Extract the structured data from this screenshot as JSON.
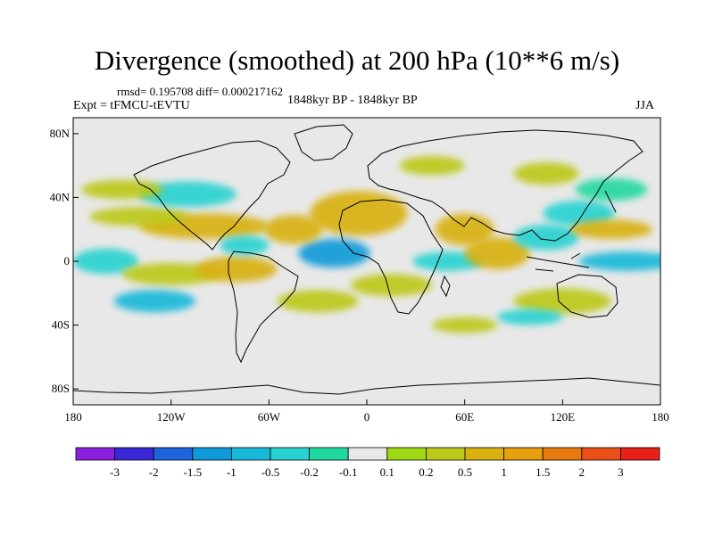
{
  "title": "Divergence (smoothed) at 200 hPa (10**6 m/s)",
  "stats": "rmsd= 0.195708 diff= 0.000217162",
  "experiment": "Expt = tFMCU-tEVTU",
  "period": "1848kyr BP - 1848kyr BP",
  "season": "JJA",
  "colors": {
    "map_background": "#e8e8e8",
    "coastline": "#000000",
    "frame": "#000000"
  },
  "chart_data": {
    "type": "heatmap",
    "projection": "cylindrical-equidistant",
    "lon_range": [
      -180,
      180
    ],
    "lat_range": [
      -90,
      90
    ],
    "x_ticks": [
      {
        "lon": -180,
        "label": "180"
      },
      {
        "lon": -120,
        "label": "120W"
      },
      {
        "lon": -60,
        "label": "60W"
      },
      {
        "lon": 0,
        "label": "0"
      },
      {
        "lon": 60,
        "label": "60E"
      },
      {
        "lon": 120,
        "label": "120E"
      },
      {
        "lon": 180,
        "label": "180"
      }
    ],
    "y_ticks": [
      {
        "lat": 80,
        "label": "80N"
      },
      {
        "lat": 40,
        "label": "40N"
      },
      {
        "lat": 0,
        "label": "0"
      },
      {
        "lat": -40,
        "label": "40S"
      },
      {
        "lat": -80,
        "label": "80S"
      }
    ],
    "colorbar": {
      "colors": [
        "#8b1fe0",
        "#3a28d8",
        "#1e64dc",
        "#0e9ad8",
        "#18b8d8",
        "#28d2d0",
        "#20d8a0",
        "#e8e8e8",
        "#9ed812",
        "#bcc818",
        "#d8b010",
        "#e8a010",
        "#e87a10",
        "#e85018",
        "#e82018"
      ],
      "labels": [
        "-3",
        "-2",
        "-1.5",
        "-1",
        "-0.5",
        "-0.2",
        "-0.1",
        "0.1",
        "0.2",
        "0.5",
        "1",
        "1.5",
        "2",
        "3"
      ]
    },
    "features": [
      {
        "lon": -5,
        "lat": 30,
        "rx": 30,
        "ry": 14,
        "value": 0.9
      },
      {
        "lon": -20,
        "lat": 5,
        "rx": 22,
        "ry": 9,
        "value": -1.2
      },
      {
        "lon": -45,
        "lat": 20,
        "rx": 18,
        "ry": 9,
        "value": 0.5
      },
      {
        "lon": -100,
        "lat": 22,
        "rx": 40,
        "ry": 8,
        "value": 0.5
      },
      {
        "lon": -140,
        "lat": 28,
        "rx": 30,
        "ry": 6,
        "value": 0.3
      },
      {
        "lon": -110,
        "lat": 42,
        "rx": 30,
        "ry": 8,
        "value": -0.3
      },
      {
        "lon": -150,
        "lat": 45,
        "rx": 25,
        "ry": 6,
        "value": 0.3
      },
      {
        "lon": -160,
        "lat": 0,
        "rx": 20,
        "ry": 8,
        "value": -0.4
      },
      {
        "lon": -120,
        "lat": -8,
        "rx": 30,
        "ry": 7,
        "value": 0.4
      },
      {
        "lon": -130,
        "lat": -25,
        "rx": 25,
        "ry": 7,
        "value": -0.8
      },
      {
        "lon": -80,
        "lat": -5,
        "rx": 25,
        "ry": 8,
        "value": 0.5
      },
      {
        "lon": -75,
        "lat": 10,
        "rx": 15,
        "ry": 6,
        "value": -0.3
      },
      {
        "lon": -30,
        "lat": -25,
        "rx": 25,
        "ry": 7,
        "value": 0.4
      },
      {
        "lon": 15,
        "lat": -15,
        "rx": 25,
        "ry": 7,
        "value": 0.3
      },
      {
        "lon": 50,
        "lat": 0,
        "rx": 22,
        "ry": 6,
        "value": -0.5
      },
      {
        "lon": 60,
        "lat": 20,
        "rx": 18,
        "ry": 10,
        "value": 0.5
      },
      {
        "lon": 80,
        "lat": 5,
        "rx": 20,
        "ry": 10,
        "value": 0.5
      },
      {
        "lon": 110,
        "lat": 15,
        "rx": 20,
        "ry": 8,
        "value": -0.5
      },
      {
        "lon": 130,
        "lat": 30,
        "rx": 22,
        "ry": 8,
        "value": -0.3
      },
      {
        "lon": 150,
        "lat": 20,
        "rx": 25,
        "ry": 6,
        "value": 0.5
      },
      {
        "lon": 160,
        "lat": 0,
        "rx": 30,
        "ry": 6,
        "value": -0.6
      },
      {
        "lon": 120,
        "lat": -25,
        "rx": 30,
        "ry": 8,
        "value": 0.4
      },
      {
        "lon": 150,
        "lat": 45,
        "rx": 22,
        "ry": 7,
        "value": -0.2
      },
      {
        "lon": 110,
        "lat": 55,
        "rx": 20,
        "ry": 7,
        "value": 0.3
      },
      {
        "lon": 40,
        "lat": 60,
        "rx": 20,
        "ry": 6,
        "value": 0.3
      },
      {
        "lon": 60,
        "lat": -40,
        "rx": 20,
        "ry": 5,
        "value": 0.3
      },
      {
        "lon": 100,
        "lat": -35,
        "rx": 20,
        "ry": 5,
        "value": -0.3
      }
    ]
  }
}
